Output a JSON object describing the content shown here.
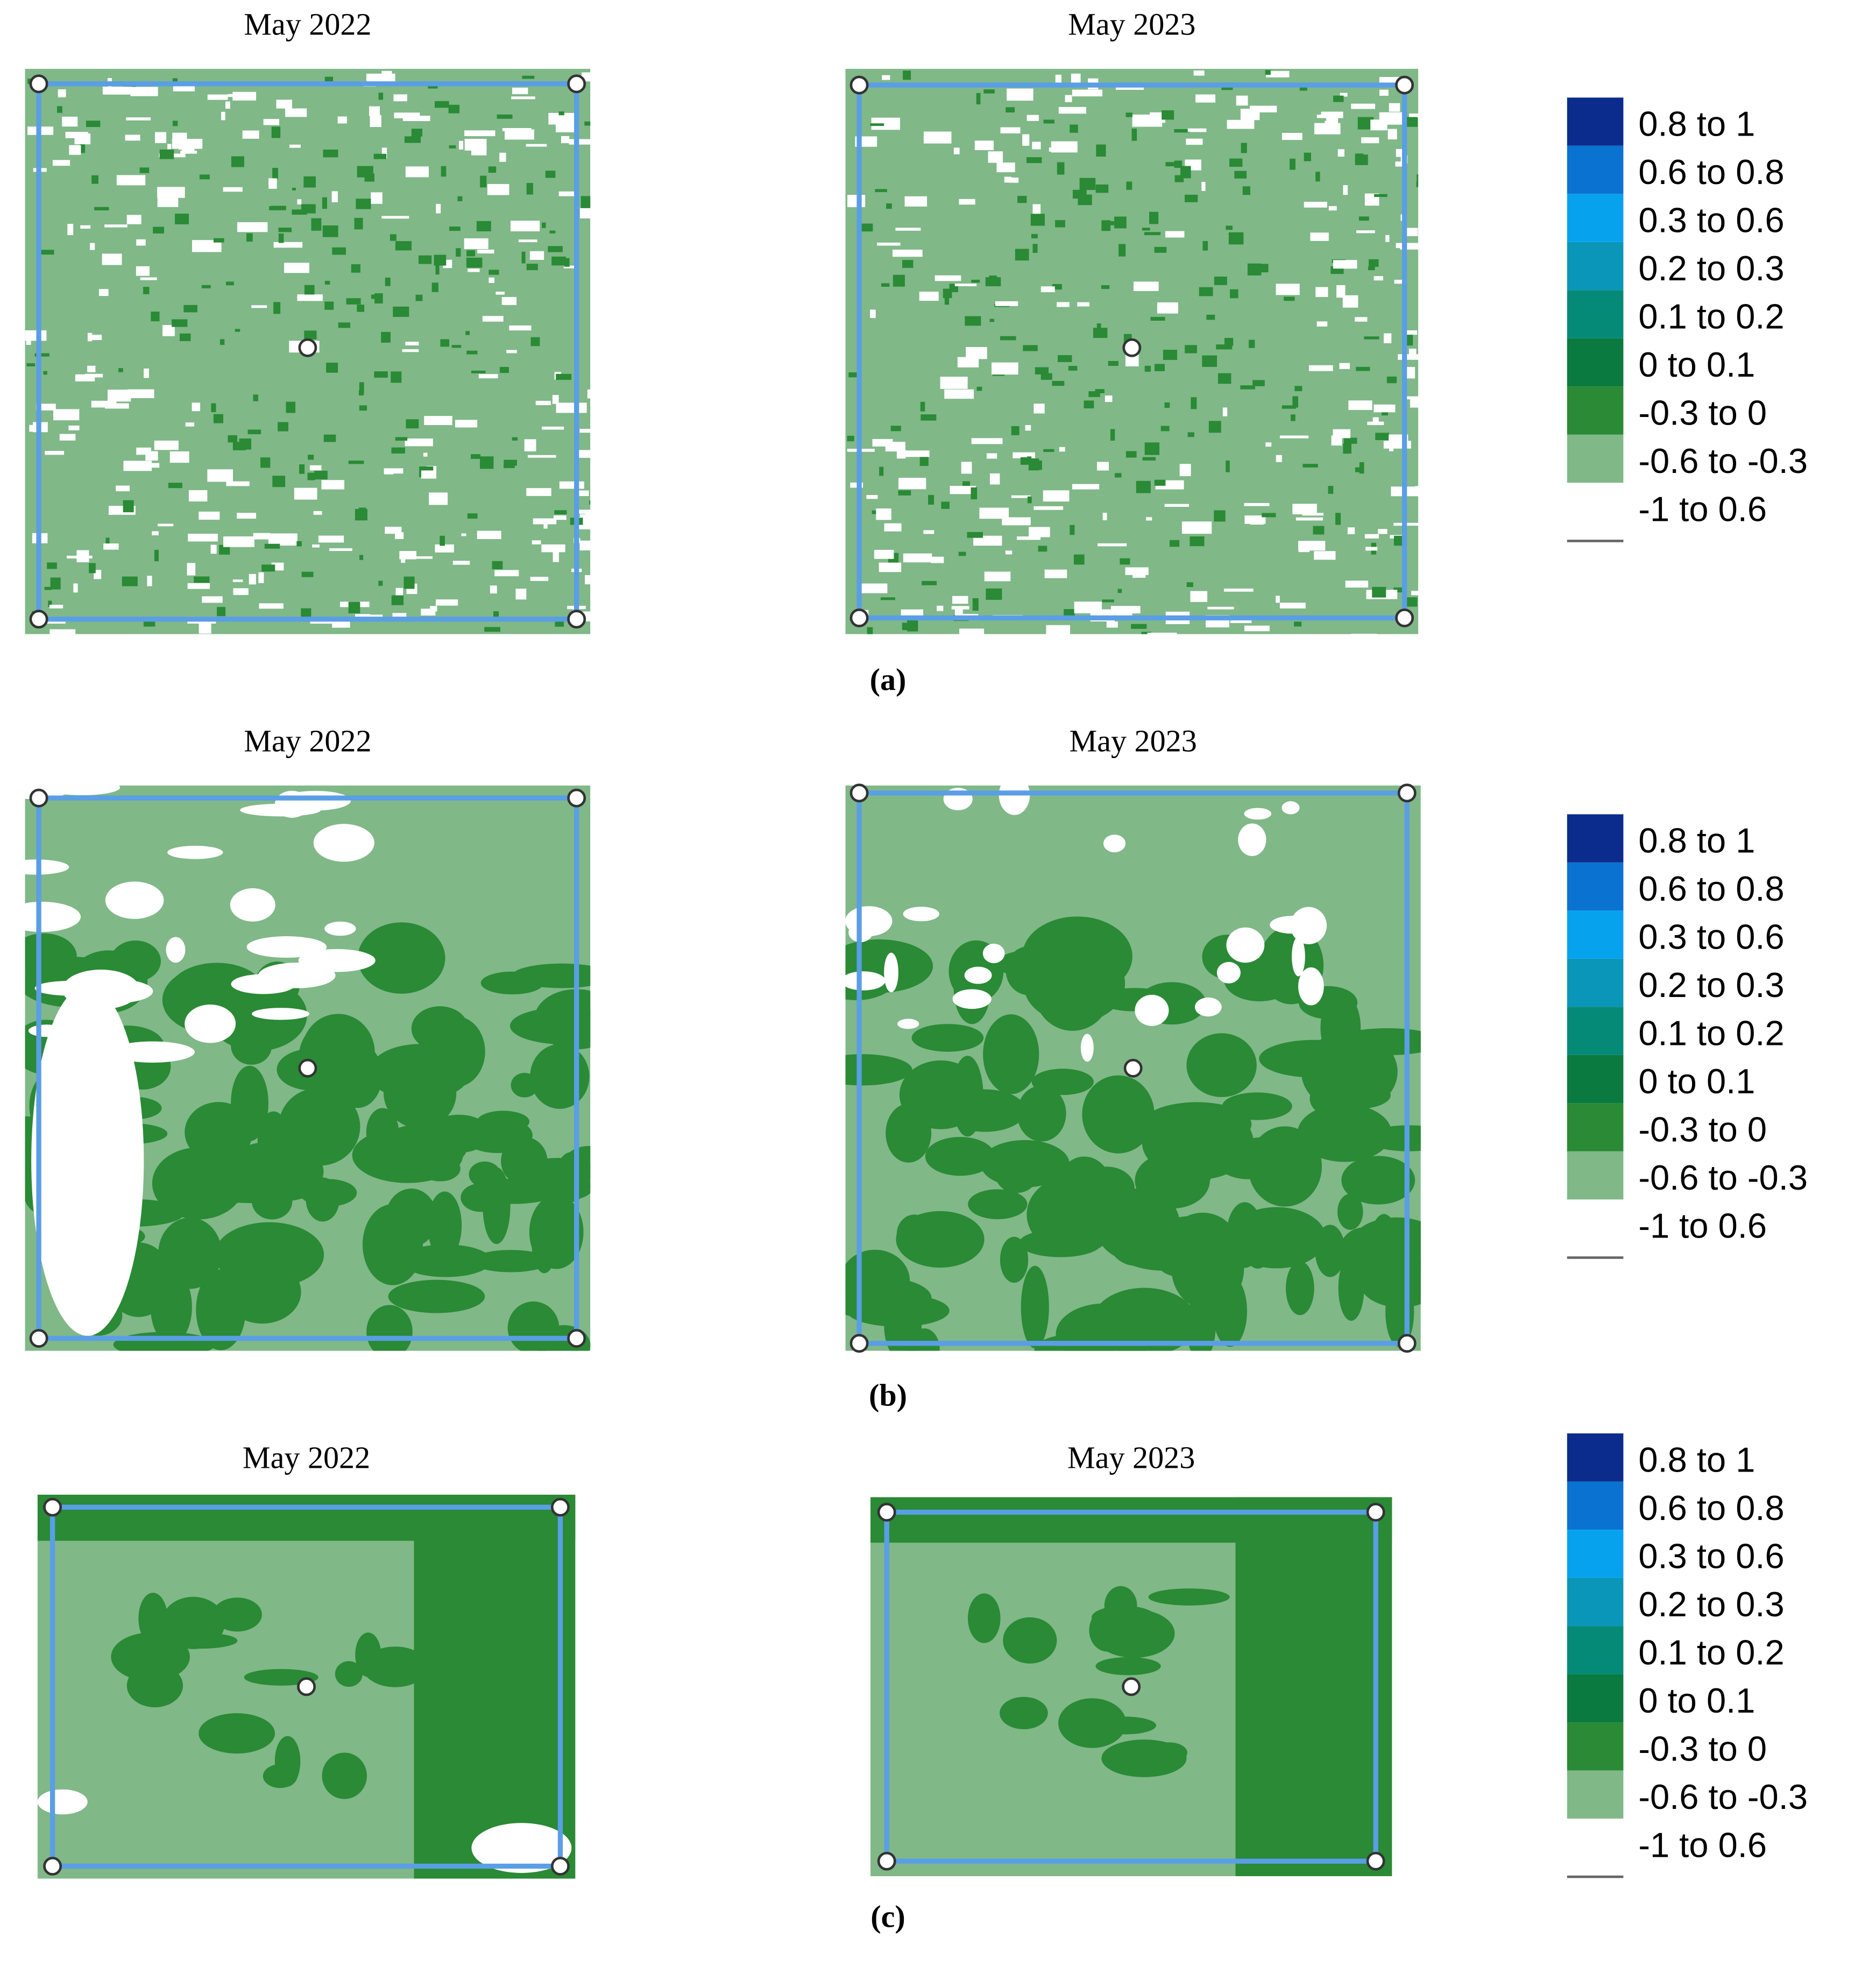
{
  "panels": [
    {
      "caption": "(a)",
      "maps": [
        {
          "title": "May 2022"
        },
        {
          "title": "May 2023"
        }
      ],
      "legend": [
        {
          "label": "0.8 to 1",
          "color": "#0b2c8c"
        },
        {
          "label": "0.6 to 0.8",
          "color": "#0a72d0"
        },
        {
          "label": "0.3 to 0.6",
          "color": "#07a2ee"
        },
        {
          "label": "0.2 to 0.3",
          "color": "#0a96b8"
        },
        {
          "label": "0.1 to 0.2",
          "color": "#068a78"
        },
        {
          "label": "0 to 0.1",
          "color": "#0a7a40"
        },
        {
          "label": "-0.3 to 0",
          "color": "#2a8a35"
        },
        {
          "label": "-0.6 to -0.3",
          "color": "#80b888"
        },
        {
          "label": "-1 to 0.6",
          "color": "#ffffff"
        }
      ]
    },
    {
      "caption": "(b)",
      "maps": [
        {
          "title": "May 2022"
        },
        {
          "title": "May 2023"
        }
      ],
      "legend": [
        {
          "label": "0.8 to 1",
          "color": "#0b2c8c"
        },
        {
          "label": "0.6 to 0.8",
          "color": "#0a72d0"
        },
        {
          "label": "0.3 to 0.6",
          "color": "#07a2ee"
        },
        {
          "label": "0.2 to 0.3",
          "color": "#0a96b8"
        },
        {
          "label": "0.1 to 0.2",
          "color": "#068a78"
        },
        {
          "label": "0 to 0.1",
          "color": "#0a7a40"
        },
        {
          "label": "-0.3 to 0",
          "color": "#2a8a35"
        },
        {
          "label": "-0.6 to -0.3",
          "color": "#80b888"
        },
        {
          "label": "-1 to 0.6",
          "color": "#ffffff"
        }
      ]
    },
    {
      "caption": "(c)",
      "maps": [
        {
          "title": "May 2022"
        },
        {
          "title": "May 2023"
        }
      ],
      "legend": [
        {
          "label": "0.8 to 1",
          "color": "#0b2c8c"
        },
        {
          "label": "0.6 to 0.8",
          "color": "#0a72d0"
        },
        {
          "label": "0.3 to 0.6",
          "color": "#07a2ee"
        },
        {
          "label": "0.2 to 0.3",
          "color": "#0a96b8"
        },
        {
          "label": "0.1 to 0.2",
          "color": "#068a78"
        },
        {
          "label": "0 to 0.1",
          "color": "#0a7a40"
        },
        {
          "label": "-0.3 to 0",
          "color": "#2a8a35"
        },
        {
          "label": "-0.6 to -0.3",
          "color": "#80b888"
        },
        {
          "label": "-1 to 0.6",
          "color": "#ffffff"
        }
      ]
    }
  ]
}
